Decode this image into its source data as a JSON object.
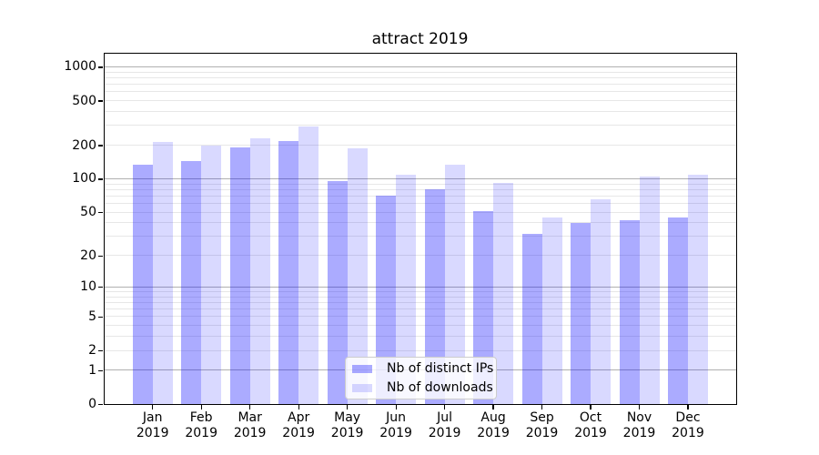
{
  "chart_data": {
    "type": "bar",
    "title": "attract 2019",
    "categories": [
      "Jan",
      "Feb",
      "Mar",
      "Apr",
      "May",
      "Jun",
      "Jul",
      "Aug",
      "Sep",
      "Oct",
      "Nov",
      "Dec"
    ],
    "year_label": "2019",
    "series": [
      {
        "name": "Nb of distinct IPs",
        "color": "rgba(0,0,255,0.33)",
        "values": [
          134,
          146,
          192,
          220,
          97,
          71,
          81,
          52,
          32,
          40,
          43,
          45
        ]
      },
      {
        "name": "Nb of downloads",
        "color": "rgba(0,0,255,0.15)",
        "values": [
          215,
          201,
          234,
          297,
          188,
          110,
          135,
          93,
          45,
          66,
          105,
          110
        ]
      }
    ],
    "yscale": "log1p",
    "ylim": [
      0,
      1300
    ],
    "ytick_values": [
      0,
      1,
      2,
      5,
      10,
      20,
      50,
      100,
      200,
      500,
      1000
    ],
    "major_grid": [
      1,
      10,
      100,
      1000
    ],
    "minor_grid": [
      2,
      3,
      4,
      5,
      6,
      7,
      8,
      9,
      20,
      30,
      40,
      50,
      60,
      70,
      80,
      90,
      200,
      300,
      400,
      500,
      600,
      700,
      800,
      900
    ],
    "grid": true,
    "legend_position": "lower center",
    "colors": {
      "major_grid": "#b0b0b0",
      "minor_grid": "#e7e7e7",
      "spine": "#000000",
      "background": "#ffffff"
    }
  }
}
